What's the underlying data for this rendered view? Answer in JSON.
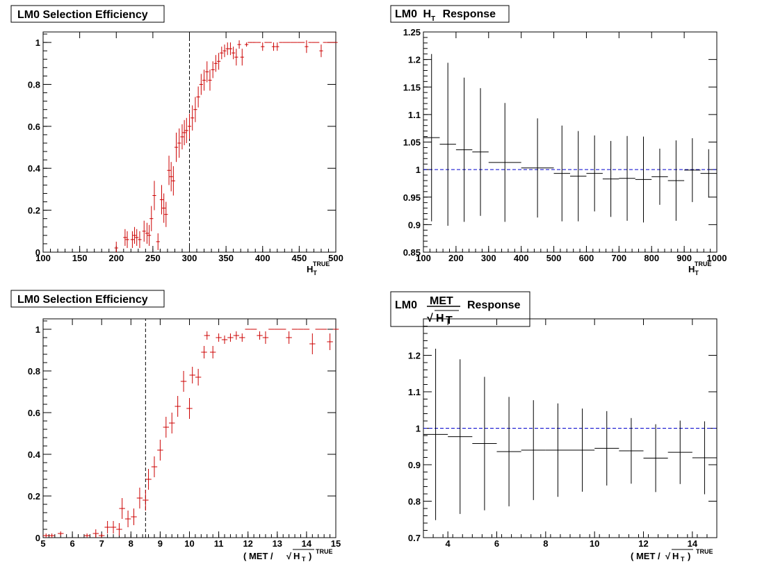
{
  "chart_data": [
    {
      "id": "ht_eff",
      "type": "scatter",
      "title": "LM0 Selection Efficiency",
      "xlabel": "H_T^TRUE",
      "ylabel": "",
      "xlim": [
        100,
        500
      ],
      "ylim": [
        0,
        1.05
      ],
      "xticks": [
        100,
        150,
        200,
        250,
        300,
        350,
        400,
        450,
        500
      ],
      "xtick_labels": [
        "100",
        "150",
        "200",
        "250",
        "300",
        "350",
        "400",
        "450",
        "500"
      ],
      "yticks": [
        0,
        0.2,
        0.4,
        0.6,
        0.8,
        1
      ],
      "ytick_labels": [
        "0",
        "0.2",
        "0.4",
        "0.6",
        "0.8",
        "1"
      ],
      "cut_line": 300,
      "marker_color": "#cc0000",
      "bin_half_width": 2.5,
      "x": [
        200,
        212,
        215,
        222,
        225,
        228,
        232,
        238,
        242,
        245,
        248,
        252,
        257,
        262,
        265,
        268,
        272,
        275,
        278,
        282,
        286,
        290,
        293,
        296,
        300,
        304,
        308,
        312,
        316,
        320,
        324,
        328,
        332,
        336,
        340,
        344,
        348,
        352,
        356,
        360,
        364,
        368,
        372,
        378,
        382,
        386,
        390,
        395,
        400,
        405,
        410,
        415,
        420,
        425,
        430,
        435,
        440,
        445,
        450,
        455,
        460,
        465,
        470,
        475,
        480,
        485,
        490,
        495,
        500
      ],
      "y": [
        0.02,
        0.07,
        0.06,
        0.06,
        0.08,
        0.07,
        0.06,
        0.1,
        0.09,
        0.08,
        0.16,
        0.27,
        0.05,
        0.25,
        0.21,
        0.18,
        0.39,
        0.36,
        0.34,
        0.5,
        0.52,
        0.55,
        0.57,
        0.58,
        0.6,
        0.64,
        0.68,
        0.74,
        0.8,
        0.82,
        0.86,
        0.82,
        0.87,
        0.9,
        0.91,
        0.95,
        0.96,
        0.97,
        0.97,
        0.95,
        0.93,
        0.99,
        0.93,
        0.99,
        1.0,
        1.0,
        1.0,
        1.0,
        0.98,
        1.0,
        1.0,
        0.98,
        0.98,
        1.0,
        1.0,
        1.0,
        1.0,
        1.0,
        1.0,
        1.0,
        0.98,
        1.0,
        1.0,
        1.0,
        0.96,
        1.0,
        1.0,
        1.0,
        1.0
      ],
      "yerr": [
        0.03,
        0.04,
        0.04,
        0.04,
        0.04,
        0.04,
        0.04,
        0.05,
        0.05,
        0.05,
        0.06,
        0.07,
        0.04,
        0.07,
        0.07,
        0.06,
        0.07,
        0.07,
        0.07,
        0.07,
        0.07,
        0.06,
        0.06,
        0.06,
        0.06,
        0.06,
        0.06,
        0.05,
        0.05,
        0.05,
        0.05,
        0.05,
        0.04,
        0.04,
        0.04,
        0.03,
        0.03,
        0.03,
        0.03,
        0.03,
        0.04,
        0.02,
        0.04,
        0.01,
        0,
        0,
        0,
        0,
        0.02,
        0,
        0,
        0.02,
        0.02,
        0,
        0,
        0,
        0,
        0,
        0,
        0,
        0.03,
        0,
        0,
        0,
        0.03,
        0,
        0,
        0,
        0
      ]
    },
    {
      "id": "ht_resp",
      "type": "scatter",
      "title": "LM0 H_T Response",
      "xlabel": "H_T^TRUE",
      "ylabel": "",
      "xlim": [
        100,
        1000
      ],
      "ylim": [
        0.85,
        1.25
      ],
      "xticks": [
        100,
        200,
        300,
        400,
        500,
        600,
        700,
        800,
        900,
        1000
      ],
      "xtick_labels": [
        "100",
        "200",
        "300",
        "400",
        "500",
        "600",
        "700",
        "800",
        "900",
        "1000"
      ],
      "yticks": [
        0.85,
        0.9,
        0.95,
        1,
        1.05,
        1.1,
        1.15,
        1.2,
        1.25
      ],
      "ytick_labels": [
        "0.85",
        "0.9",
        "0.95",
        "1",
        "1.05",
        "1.1",
        "1.15",
        "1.2",
        "1.25"
      ],
      "ref_line": 1,
      "marker_color": "#000000",
      "x": [
        125,
        175,
        225,
        275,
        350,
        450,
        525,
        575,
        625,
        675,
        725,
        775,
        825,
        875,
        925,
        975
      ],
      "xerr": [
        25,
        25,
        25,
        25,
        50,
        50,
        25,
        25,
        25,
        25,
        25,
        25,
        25,
        25,
        25,
        25
      ],
      "y": [
        1.058,
        1.046,
        1.036,
        1.032,
        1.013,
        1.003,
        0.993,
        0.988,
        0.993,
        0.983,
        0.984,
        0.982,
        0.987,
        0.98,
        0.999,
        0.993
      ],
      "yerr": [
        0.152,
        0.148,
        0.131,
        0.116,
        0.108,
        0.09,
        0.087,
        0.082,
        0.069,
        0.069,
        0.077,
        0.078,
        0.051,
        0.073,
        0.058,
        0.044
      ]
    },
    {
      "id": "met_eff",
      "type": "scatter",
      "title": "LM0 Selection Efficiency",
      "xlabel": "( MET /√H_T )^TRUE",
      "ylabel": "",
      "xlim": [
        5,
        15
      ],
      "ylim": [
        0,
        1.05
      ],
      "xticks": [
        5,
        6,
        7,
        8,
        9,
        10,
        11,
        12,
        13,
        14,
        15
      ],
      "xtick_labels": [
        "5",
        "6",
        "7",
        "8",
        "9",
        "10",
        "11",
        "12",
        "13",
        "14",
        "15"
      ],
      "yticks": [
        0,
        0.2,
        0.4,
        0.6,
        0.8,
        1
      ],
      "ytick_labels": [
        "0",
        "0.2",
        "0.4",
        "0.6",
        "0.8",
        "1"
      ],
      "cut_line": 8.5,
      "marker_color": "#cc0000",
      "bin_half_width": 0.1,
      "x": [
        5.1,
        5.3,
        5.6,
        6.5,
        6.8,
        7.0,
        7.2,
        7.4,
        7.6,
        7.7,
        7.9,
        8.1,
        8.3,
        8.5,
        8.6,
        8.8,
        9.0,
        9.2,
        9.4,
        9.6,
        9.8,
        10.0,
        10.1,
        10.3,
        10.5,
        10.6,
        10.8,
        11.0,
        11.2,
        11.4,
        11.6,
        11.8,
        12.0,
        12.2,
        12.4,
        12.6,
        12.8,
        13.0,
        13.2,
        13.4,
        13.6,
        13.8,
        14.0,
        14.2,
        14.4,
        14.6,
        14.8,
        15.0
      ],
      "y": [
        0.01,
        0.01,
        0.02,
        0.01,
        0.02,
        0.01,
        0.05,
        0.05,
        0.04,
        0.14,
        0.09,
        0.1,
        0.19,
        0.18,
        0.28,
        0.34,
        0.42,
        0.53,
        0.55,
        0.63,
        0.75,
        0.62,
        0.78,
        0.77,
        0.89,
        0.97,
        0.89,
        0.96,
        0.95,
        0.96,
        0.97,
        0.96,
        1.0,
        1.0,
        0.97,
        0.96,
        1.0,
        1.0,
        1.0,
        0.96,
        1.0,
        1.0,
        1.0,
        0.93,
        1.0,
        1.0,
        0.94,
        1.0
      ],
      "yerr": [
        0.01,
        0.01,
        0.01,
        0.01,
        0.02,
        0.01,
        0.03,
        0.03,
        0.03,
        0.05,
        0.04,
        0.04,
        0.05,
        0.05,
        0.05,
        0.05,
        0.05,
        0.05,
        0.05,
        0.05,
        0.05,
        0.05,
        0.04,
        0.04,
        0.03,
        0.02,
        0.03,
        0.02,
        0.02,
        0.02,
        0.02,
        0.02,
        0,
        0,
        0.02,
        0.03,
        0,
        0,
        0,
        0.03,
        0,
        0,
        0,
        0.05,
        0,
        0,
        0.04,
        0
      ]
    },
    {
      "id": "met_resp",
      "type": "scatter",
      "title": "LM0 MET/√H_T Response",
      "xlabel": "( MET /√H_T )^TRUE",
      "ylabel": "",
      "xlim": [
        3,
        15
      ],
      "ylim": [
        0.7,
        1.3
      ],
      "xticks": [
        4,
        6,
        8,
        10,
        12,
        14
      ],
      "xtick_labels": [
        "4",
        "6",
        "8",
        "10",
        "12",
        "14"
      ],
      "yticks": [
        0.7,
        0.8,
        0.9,
        1,
        1.1,
        1.2
      ],
      "ytick_labels": [
        "0.7",
        "0.8",
        "0.9",
        "1",
        "1.1",
        "1.2"
      ],
      "ref_line": 1,
      "marker_color": "#000000",
      "x": [
        3.5,
        4.5,
        5.5,
        6.5,
        7.5,
        8.5,
        9.5,
        10.5,
        11.5,
        12.5,
        13.5,
        14.5
      ],
      "xerr": [
        0.5,
        0.5,
        0.5,
        0.5,
        0.5,
        0.5,
        0.5,
        0.5,
        0.5,
        0.5,
        0.5,
        0.5
      ],
      "y": [
        0.983,
        0.977,
        0.958,
        0.936,
        0.94,
        0.94,
        0.94,
        0.945,
        0.938,
        0.918,
        0.934,
        0.919
      ],
      "yerr": [
        0.235,
        0.212,
        0.183,
        0.15,
        0.137,
        0.128,
        0.114,
        0.102,
        0.09,
        0.093,
        0.087,
        0.1
      ]
    }
  ],
  "labels": {
    "lm0": "LM0",
    "selection_efficiency": "LM0 Selection Efficiency",
    "h": "H",
    "t": "T",
    "response": "Response",
    "met": "MET",
    "true_sup": "TRUE",
    "paren_open": "( MET /",
    "paren_close": ")"
  }
}
